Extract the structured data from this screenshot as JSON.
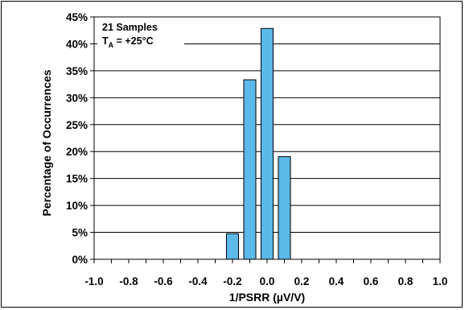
{
  "chart_data": {
    "type": "bar",
    "title": "",
    "xlabel": "1/PSRR (µV/V)",
    "ylabel": "Percentage of Occurrences",
    "x_ticks": [
      "-1.0",
      "-0.8",
      "-0.6",
      "-0.4",
      "-0.2",
      "0.0",
      "0.2",
      "0.4",
      "0.6",
      "0.8",
      "1.0"
    ],
    "y_ticks": [
      "0%",
      "5%",
      "10%",
      "15%",
      "20%",
      "25%",
      "30%",
      "35%",
      "40%",
      "45%"
    ],
    "xlim": [
      -1.0,
      1.0
    ],
    "ylim": [
      0,
      45
    ],
    "grid": "horizontal",
    "bar_color": "#5BB8E8",
    "bar_width": 0.07,
    "bars": [
      {
        "x": -0.2,
        "value": 4.76
      },
      {
        "x": -0.1,
        "value": 33.33
      },
      {
        "x": 0.0,
        "value": 42.86
      },
      {
        "x": 0.1,
        "value": 19.05
      }
    ],
    "annotation": {
      "line1": "21 Samples",
      "line2_main": "T",
      "line2_sub": "A",
      "line2_rest": " = +25°C"
    }
  }
}
